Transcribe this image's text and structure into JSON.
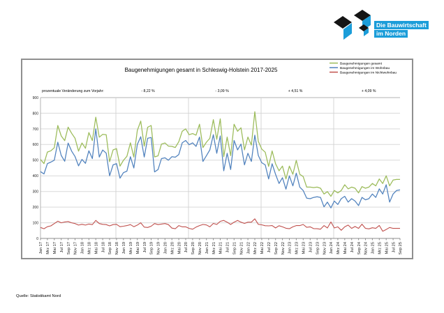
{
  "page": {
    "background": "#ffffff",
    "source_note": "Quelle: Statistikamt Nord"
  },
  "logo": {
    "line1": "Die Bauwirtschaft",
    "line2": "im Norden",
    "accent_color": "#1b9dd9",
    "black_color": "#141414"
  },
  "chart_data": {
    "type": "line",
    "title": "Baugenehmigungen gesamt in Schleswig-Holstein 2017-2025",
    "subtitle_label": "prozentuale Veränderung zum Vorjahr:",
    "pct_changes": [
      "- 8,22 %",
      "- 3,09 %",
      "+ 4,51 %",
      "+ 4,09 %"
    ],
    "pct_fractions": [
      0.299,
      0.505,
      0.709,
      0.913
    ],
    "ylim": [
      0,
      900
    ],
    "ytick_step": 100,
    "separator_fractions": [
      0.2097,
      0.4117,
      0.6136,
      0.8155
    ],
    "grid_color": "#d9d9d9",
    "x_tick_labels": [
      "Jan 17",
      "Mrz 17",
      "Mai 17",
      "Jul 17",
      "Sep 17",
      "Nov 17",
      "Jan 18",
      "Mrz 18",
      "Mai 18",
      "Jul 18",
      "Sep 18",
      "Nov 18",
      "Jan 19",
      "Mrz 19",
      "Mai 19",
      "Jul 19",
      "Sep 19",
      "Nov 19",
      "Jan 20",
      "Mrz 20",
      "Mai 20",
      "Jul 20",
      "Sep 20",
      "Nov 20",
      "Jan 21",
      "Mrz 21",
      "Mai 21",
      "Jul 21",
      "Sep 21",
      "Nov 21",
      "Jan 22",
      "Mrz 22",
      "Mai 22",
      "Jul 22",
      "Sep 22",
      "Nov 22",
      "Jan 23",
      "Mrz 23",
      "Mai 23",
      "Jul 23",
      "Sep 23",
      "Nov 23",
      "Jan 24",
      "Mrz 24",
      "Mai 24",
      "Jul 24",
      "Sep 24",
      "Nov 24",
      "Jan 25",
      "Mrz 25",
      "Mai 25",
      "Jul 25",
      "Sep 25"
    ],
    "series": [
      {
        "name": "Baugenehmigungen gesamt",
        "color": "#9BBB59",
        "values": [
          505,
          478,
          552,
          560,
          580,
          722,
          655,
          625,
          711,
          672,
          640,
          558,
          610,
          576,
          677,
          625,
          775,
          647,
          665,
          663,
          490,
          566,
          574,
          462,
          499,
          525,
          611,
          520,
          690,
          750,
          590,
          710,
          722,
          521,
          528,
          603,
          610,
          590,
          588,
          581,
          618,
          685,
          700,
          663,
          670,
          660,
          730,
          581,
          615,
          640,
          759,
          633,
          764,
          522,
          648,
          529,
          730,
          685,
          707,
          566,
          648,
          596,
          810,
          620,
          571,
          551,
          460,
          559,
          477,
          432,
          462,
          380,
          462,
          410,
          499,
          410,
          395,
          328,
          328,
          325,
          328,
          321,
          284,
          299,
          269,
          306,
          291,
          306,
          343,
          317,
          328,
          321,
          291,
          331,
          321,
          328,
          351,
          336,
          380,
          351,
          400,
          336,
          373,
          377,
          377
        ]
      },
      {
        "name": "Baugenehmigungen im Wohnbau",
        "color": "#4F81BD",
        "values": [
          427,
          412,
          478,
          488,
          500,
          615,
          530,
          493,
          609,
          558,
          523,
          464,
          505,
          480,
          560,
          510,
          700,
          520,
          565,
          545,
          400,
          470,
          478,
          385,
          420,
          430,
          522,
          450,
          600,
          650,
          520,
          640,
          645,
          425,
          440,
          510,
          515,
          500,
          522,
          519,
          536,
          611,
          626,
          599,
          611,
          588,
          648,
          492,
          529,
          566,
          663,
          544,
          655,
          432,
          544,
          440,
          626,
          566,
          603,
          470,
          544,
          492,
          660,
          530,
          484,
          470,
          380,
          477,
          410,
          351,
          388,
          315,
          400,
          336,
          417,
          328,
          306,
          257,
          254,
          262,
          266,
          262,
          202,
          232,
          195,
          239,
          217,
          254,
          269,
          232,
          254,
          239,
          210,
          262,
          247,
          254,
          284,
          262,
          317,
          284,
          343,
          232,
          284,
          306,
          310
        ]
      },
      {
        "name": "Baugenehmigungen im Nichtwohnbau",
        "color": "#C0504D",
        "values": [
          70,
          62,
          75,
          80,
          95,
          110,
          100,
          105,
          108,
          100,
          95,
          85,
          90,
          85,
          92,
          88,
          115,
          95,
          90,
          88,
          80,
          88,
          90,
          75,
          78,
          82,
          88,
          75,
          85,
          100,
          72,
          70,
          78,
          95,
          88,
          92,
          95,
          88,
          66,
          62,
          82,
          74,
          74,
          64,
          59,
          72,
          82,
          89,
          86,
          74,
          96,
          89,
          109,
          115,
          104,
          89,
          104,
          115,
          104,
          96,
          104,
          104,
          125,
          90,
          87,
          81,
          80,
          82,
          67,
          81,
          74,
          65,
          62,
          74,
          82,
          82,
          89,
          71,
          74,
          63,
          62,
          59,
          82,
          67,
          105,
          67,
          74,
          52,
          74,
          85,
          64,
          76,
          64,
          91,
          64,
          61,
          68,
          64,
          83,
          46,
          57,
          70,
          64,
          64,
          64
        ]
      }
    ]
  }
}
